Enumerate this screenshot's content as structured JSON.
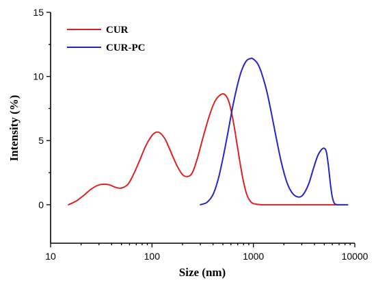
{
  "chart_data": {
    "type": "line",
    "title": "",
    "xlabel": "Size (nm)",
    "ylabel": "Intensity (%)",
    "xscale": "log",
    "xlim": [
      10,
      10000
    ],
    "ylim": [
      -3,
      15
    ],
    "xticks": [
      10,
      100,
      1000,
      10000
    ],
    "xtick_labels": [
      "10",
      "100",
      "1000",
      "10000"
    ],
    "yticks": [
      0,
      5,
      10,
      15
    ],
    "ytick_labels": [
      "0",
      "5",
      "10",
      "15"
    ],
    "grid": false,
    "legend_position": "top-left",
    "series": [
      {
        "name": "CUR",
        "color": "#e02020",
        "x": [
          15,
          18,
          21,
          25,
          29,
          33,
          38,
          44,
          50,
          58,
          66,
          76,
          87,
          100,
          110,
          120,
          135,
          150,
          175,
          200,
          225,
          250,
          280,
          320,
          370,
          420,
          480,
          530,
          580,
          640,
          700,
          780,
          860,
          950,
          1050,
          1200,
          1500,
          2000,
          3000,
          5000,
          7000
        ],
        "y": [
          0,
          0.3,
          0.7,
          1.2,
          1.5,
          1.6,
          1.55,
          1.35,
          1.3,
          1.6,
          2.4,
          3.5,
          4.6,
          5.4,
          5.65,
          5.6,
          5.1,
          4.3,
          3.1,
          2.35,
          2.2,
          2.5,
          3.6,
          5.3,
          7.0,
          8.1,
          8.6,
          8.55,
          7.9,
          6.3,
          4.4,
          2.2,
          0.8,
          0.2,
          0.05,
          0,
          0,
          0,
          0,
          0,
          0
        ]
      },
      {
        "name": "CUR-PC",
        "color": "#2424c8",
        "x": [
          300,
          350,
          400,
          450,
          500,
          560,
          620,
          690,
          760,
          850,
          940,
          1000,
          1100,
          1200,
          1350,
          1500,
          1700,
          1900,
          2150,
          2450,
          2800,
          3100,
          3500,
          3900,
          4300,
          4700,
          5000,
          5250,
          5500,
          5750,
          6000,
          6300,
          6700,
          7000,
          8500
        ],
        "y": [
          0,
          0.2,
          0.8,
          2.0,
          3.6,
          5.6,
          7.5,
          9.2,
          10.4,
          11.2,
          11.4,
          11.35,
          11.0,
          10.3,
          8.9,
          7.2,
          5.0,
          3.2,
          1.7,
          0.85,
          0.6,
          0.8,
          1.6,
          2.8,
          3.8,
          4.3,
          4.4,
          4.1,
          3.0,
          1.6,
          0.6,
          0.1,
          0,
          0,
          0
        ]
      }
    ]
  }
}
